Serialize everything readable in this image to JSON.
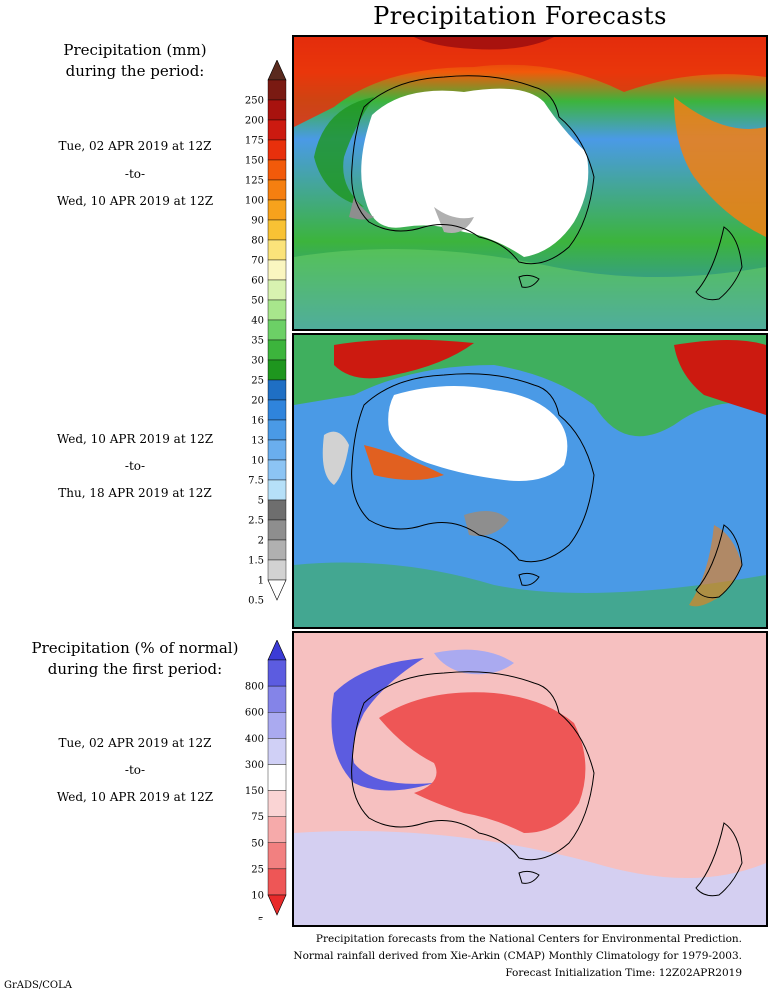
{
  "title": "Precipitation Forecasts",
  "panel1": {
    "heading": [
      "Precipitation (mm)",
      "during the period:"
    ],
    "start": "Tue, 02 APR 2019 at 12Z",
    "sep": "-to-",
    "end": "Wed, 10 APR 2019 at 12Z"
  },
  "panel2": {
    "start": "Wed, 10 APR 2019 at 12Z",
    "sep": "-to-",
    "end": "Thu, 18 APR 2019 at 12Z"
  },
  "panel3": {
    "heading": [
      "Precipitation (% of normal)",
      "during the first period:"
    ],
    "start": "Tue, 02 APR 2019 at 12Z",
    "sep": "-to-",
    "end": "Wed, 10 APR 2019 at 12Z"
  },
  "mm_colorbar": {
    "labels": [
      "250",
      "200",
      "175",
      "150",
      "125",
      "100",
      "90",
      "80",
      "70",
      "60",
      "50",
      "40",
      "35",
      "30",
      "25",
      "20",
      "16",
      "13",
      "10",
      "7.5",
      "5",
      "2.5",
      "2",
      "1.5",
      "1",
      "0.5"
    ],
    "colors": [
      "#5a2a1e",
      "#7a1a12",
      "#a8120e",
      "#cc1a10",
      "#e8300c",
      "#f25a0a",
      "#f57f10",
      "#f7a21c",
      "#f8c234",
      "#fbe37a",
      "#faf6c0",
      "#d8f2b0",
      "#a8e68c",
      "#6cd066",
      "#3cb43c",
      "#1e961e",
      "#1f6fc4",
      "#2f84dc",
      "#4a9ae6",
      "#6aaeee",
      "#8cc4f4",
      "#b6e0f8",
      "#6e6e6e",
      "#8e8e8e",
      "#b0b0b0",
      "#d2d2d2",
      "#ffffff"
    ]
  },
  "pct_colorbar": {
    "labels": [
      "800",
      "600",
      "400",
      "300",
      "150",
      "75",
      "50",
      "25",
      "10",
      "5"
    ],
    "colors": [
      "#3b3bd6",
      "#5c5ce0",
      "#8484e8",
      "#aaaaf0",
      "#d0d0f6",
      "#ffffff",
      "#fad4d4",
      "#f6aaaa",
      "#f28080",
      "#ee5656",
      "#e82a2a"
    ]
  },
  "footer": [
    "Precipitation forecasts from the National Centers for Environmental Prediction.",
    "Normal rainfall derived from Xie-Arkin (CMAP) Monthly Climatology for 1979-2003.",
    "Forecast Initialization Time: 12Z02APR2019"
  ],
  "credit": "GrADS/COLA"
}
